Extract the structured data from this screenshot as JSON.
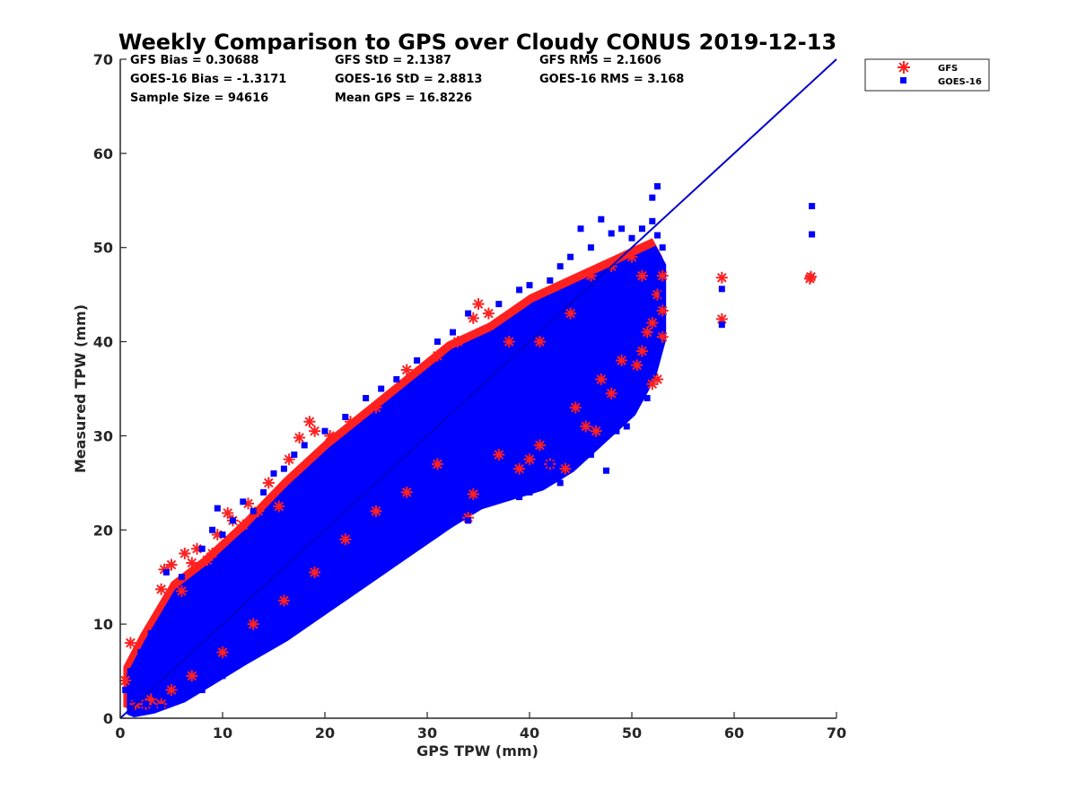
{
  "chart_data": {
    "type": "scatter",
    "title": "Weekly Comparison to GPS over Cloudy CONUS 2019-12-13",
    "xlabel": "GPS TPW (mm)",
    "ylabel": "Measured TPW (mm)",
    "xlim": [
      0,
      70
    ],
    "ylim": [
      0,
      70
    ],
    "xticks": [
      "0",
      "10",
      "20",
      "30",
      "40",
      "50",
      "60",
      "70"
    ],
    "yticks": [
      "0",
      "10",
      "20",
      "30",
      "40",
      "50",
      "60",
      "70"
    ],
    "grid": false,
    "legend_position": "outside-top-right",
    "reference_line": {
      "x": [
        0,
        70
      ],
      "y": [
        0,
        70
      ],
      "color": "#0000cc"
    },
    "stats": [
      {
        "key": "gfs_bias",
        "text": "GFS Bias = 0.30688"
      },
      {
        "key": "gfs_std",
        "text": "GFS StD = 2.1387"
      },
      {
        "key": "gfs_rms",
        "text": "GFS RMS = 2.1606"
      },
      {
        "key": "goes_bias",
        "text": "GOES-16 Bias = -1.3171"
      },
      {
        "key": "goes_std",
        "text": "GOES-16 StD = 2.8813"
      },
      {
        "key": "goes_rms",
        "text": "GOES-16 RMS = 3.168"
      },
      {
        "key": "sample_size",
        "text": "Sample Size = 94616"
      },
      {
        "key": "mean_gps",
        "text": "Mean GPS = 16.8226"
      }
    ],
    "series": [
      {
        "name": "GFS",
        "color": "#ff2020",
        "marker": "asterisk",
        "points": [
          [
            0.5,
            4.0
          ],
          [
            1.0,
            8.0
          ],
          [
            1.5,
            1.5
          ],
          [
            2.5,
            1.5
          ],
          [
            4.0,
            13.7
          ],
          [
            4.3,
            15.8
          ],
          [
            5.0,
            16.3
          ],
          [
            6.0,
            13.5
          ],
          [
            6.3,
            17.5
          ],
          [
            7.0,
            16.5
          ],
          [
            7.5,
            18.0
          ],
          [
            8.5,
            16.8
          ],
          [
            9.0,
            17.5
          ],
          [
            9.5,
            19.5
          ],
          [
            10.5,
            21.8
          ],
          [
            11.0,
            21.0
          ],
          [
            12.0,
            20.5
          ],
          [
            12.5,
            22.8
          ],
          [
            13.5,
            22.0
          ],
          [
            14.5,
            25.0
          ],
          [
            15.5,
            22.5
          ],
          [
            16.5,
            27.5
          ],
          [
            17.5,
            29.8
          ],
          [
            18.5,
            31.5
          ],
          [
            19.0,
            30.5
          ],
          [
            20.5,
            30.0
          ],
          [
            22.5,
            31.5
          ],
          [
            25.0,
            33.0
          ],
          [
            28.0,
            37.0
          ],
          [
            31.0,
            38.5
          ],
          [
            33.0,
            40.0
          ],
          [
            34.5,
            42.5
          ],
          [
            35.0,
            44.0
          ],
          [
            36.0,
            43.0
          ],
          [
            38.0,
            40.0
          ],
          [
            41.0,
            40.0
          ],
          [
            44.0,
            43.0
          ],
          [
            46.0,
            47.0
          ],
          [
            48.0,
            48.0
          ],
          [
            50.0,
            49.0
          ],
          [
            51.0,
            47.0
          ],
          [
            52.0,
            42.0
          ],
          [
            52.5,
            45.0
          ],
          [
            53.0,
            47.0
          ],
          [
            53.0,
            43.3
          ],
          [
            53.0,
            40.5
          ],
          [
            52.5,
            36.0
          ],
          [
            52.0,
            35.5
          ],
          [
            51.0,
            39.0
          ],
          [
            51.5,
            41.0
          ],
          [
            50.5,
            37.5
          ],
          [
            49.0,
            38.0
          ],
          [
            48.0,
            34.5
          ],
          [
            47.0,
            36.0
          ],
          [
            46.5,
            30.5
          ],
          [
            45.5,
            31.0
          ],
          [
            44.5,
            33.0
          ],
          [
            43.5,
            26.5
          ],
          [
            42.0,
            27.0
          ],
          [
            41.0,
            29.0
          ],
          [
            40.0,
            27.5
          ],
          [
            39.0,
            26.5
          ],
          [
            37.0,
            28.0
          ],
          [
            34.5,
            23.8
          ],
          [
            34.0,
            21.3
          ],
          [
            31.0,
            27.0
          ],
          [
            28.0,
            24.0
          ],
          [
            25.0,
            22.0
          ],
          [
            22.0,
            19.0
          ],
          [
            19.0,
            15.5
          ],
          [
            16.0,
            12.5
          ],
          [
            13.0,
            10.0
          ],
          [
            10.0,
            7.0
          ],
          [
            7.0,
            4.5
          ],
          [
            5.0,
            3.0
          ],
          [
            3.0,
            2.0
          ],
          [
            4.0,
            1.5
          ],
          [
            58.8,
            46.8
          ],
          [
            58.8,
            42.4
          ],
          [
            67.5,
            46.9
          ],
          [
            67.4,
            46.7
          ]
        ]
      },
      {
        "name": "GOES-16",
        "color": "#0000ff",
        "marker": "square",
        "points": [
          [
            0.5,
            3.0
          ],
          [
            1.0,
            5.0
          ],
          [
            1.5,
            2.0
          ],
          [
            2.0,
            7.0
          ],
          [
            2.5,
            1.5
          ],
          [
            3.0,
            9.0
          ],
          [
            3.5,
            2.5
          ],
          [
            4.0,
            10.0
          ],
          [
            4.5,
            15.5
          ],
          [
            5.0,
            12.0
          ],
          [
            6.0,
            15.0
          ],
          [
            7.0,
            14.0
          ],
          [
            8.0,
            18.0
          ],
          [
            9.0,
            20.0
          ],
          [
            9.5,
            22.3
          ],
          [
            10.0,
            19.5
          ],
          [
            11.0,
            21.0
          ],
          [
            12.0,
            23.0
          ],
          [
            13.0,
            22.0
          ],
          [
            14.0,
            24.0
          ],
          [
            15.0,
            26.0
          ],
          [
            16.0,
            26.5
          ],
          [
            17.0,
            28.0
          ],
          [
            18.0,
            29.0
          ],
          [
            20.0,
            30.5
          ],
          [
            22.0,
            32.0
          ],
          [
            24.0,
            34.0
          ],
          [
            25.5,
            35.0
          ],
          [
            27.0,
            36.0
          ],
          [
            29.0,
            38.0
          ],
          [
            31.0,
            40.0
          ],
          [
            32.5,
            41.0
          ],
          [
            34.0,
            43.0
          ],
          [
            37.0,
            44.0
          ],
          [
            39.0,
            45.5
          ],
          [
            40.0,
            46.0
          ],
          [
            42.0,
            46.5
          ],
          [
            43.0,
            48.0
          ],
          [
            44.0,
            49.0
          ],
          [
            45.0,
            52.0
          ],
          [
            46.0,
            50.0
          ],
          [
            47.0,
            53.0
          ],
          [
            48.0,
            51.5
          ],
          [
            49.0,
            52.0
          ],
          [
            50.0,
            51.0
          ],
          [
            51.0,
            52.0
          ],
          [
            52.0,
            52.8
          ],
          [
            52.5,
            51.3
          ],
          [
            53.0,
            50.0
          ],
          [
            53.0,
            45.0
          ],
          [
            52.5,
            40.0
          ],
          [
            52.0,
            37.0
          ],
          [
            51.5,
            34.0
          ],
          [
            50.0,
            34.0
          ],
          [
            49.5,
            31.0
          ],
          [
            48.5,
            30.5
          ],
          [
            47.0,
            32.0
          ],
          [
            47.5,
            26.3
          ],
          [
            46.0,
            28.0
          ],
          [
            44.0,
            30.0
          ],
          [
            43.0,
            25.0
          ],
          [
            42.0,
            27.0
          ],
          [
            40.0,
            24.0
          ],
          [
            39.0,
            23.5
          ],
          [
            37.0,
            26.0
          ],
          [
            35.0,
            23.0
          ],
          [
            34.0,
            21.0
          ],
          [
            33.0,
            22.0
          ],
          [
            30.0,
            20.0
          ],
          [
            28.0,
            18.5
          ],
          [
            25.0,
            16.0
          ],
          [
            22.0,
            13.5
          ],
          [
            19.0,
            11.0
          ],
          [
            16.0,
            9.0
          ],
          [
            13.0,
            7.0
          ],
          [
            10.0,
            4.5
          ],
          [
            8.0,
            3.0
          ],
          [
            6.0,
            2.0
          ],
          [
            4.0,
            1.2
          ],
          [
            52.0,
            55.3
          ],
          [
            52.5,
            56.5
          ],
          [
            58.8,
            45.6
          ],
          [
            58.8,
            41.8
          ],
          [
            67.6,
            54.4
          ],
          [
            67.6,
            51.4
          ]
        ]
      }
    ]
  }
}
